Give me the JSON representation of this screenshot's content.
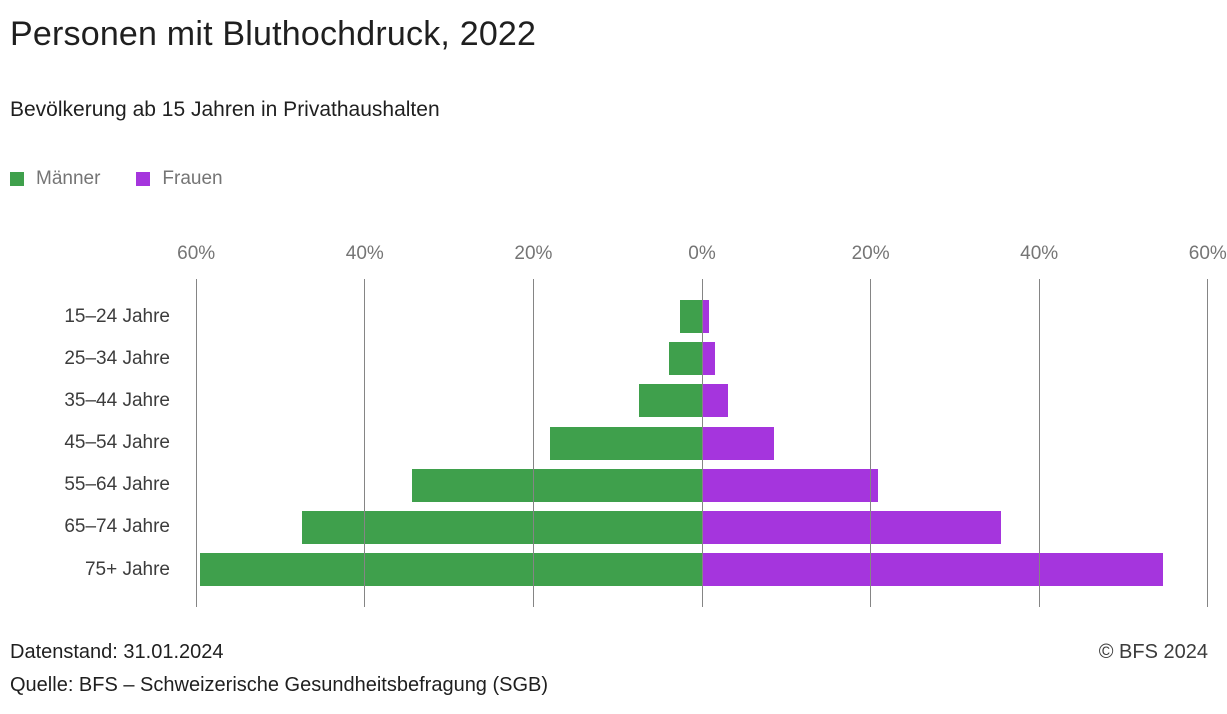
{
  "title": "Personen mit Bluthochdruck, 2022",
  "subtitle": "Bevölkerung ab 15 Jahren in Privathaushalten",
  "legend": {
    "items": [
      {
        "label": "Männer",
        "color": "#3fa04c"
      },
      {
        "label": "Frauen",
        "color": "#a535dd"
      }
    ]
  },
  "footer": {
    "datenstand": "Datenstand: 31.01.2024",
    "quelle": "Quelle: BFS – Schweizerische Gesundheitsbefragung (SGB)",
    "copyright": "© BFS 2024"
  },
  "colors": {
    "male": "#3fa04c",
    "female": "#a535dd",
    "gridline": "#858585",
    "tick_text": "#757575",
    "label_text": "#3c3c3c"
  },
  "chart_data": {
    "type": "bar",
    "variant": "population-pyramid-horizontal",
    "title": "Personen mit Bluthochdruck, 2022",
    "subtitle": "Bevölkerung ab 15 Jahren in Privathaushalten",
    "unit": "%",
    "categories": [
      "15–24 Jahre",
      "25–34 Jahre",
      "35–44 Jahre",
      "45–54 Jahre",
      "55–64 Jahre",
      "65–74 Jahre",
      "75+ Jahre"
    ],
    "series": [
      {
        "name": "Männer",
        "side": "left",
        "color": "#3fa04c",
        "values": [
          2.6,
          3.9,
          7.5,
          18.0,
          34.4,
          47.5,
          59.5
        ]
      },
      {
        "name": "Frauen",
        "side": "right",
        "color": "#a535dd",
        "values": [
          0.8,
          1.6,
          3.1,
          8.6,
          20.9,
          35.5,
          54.7
        ]
      }
    ],
    "x_tick_values": [
      -60,
      -40,
      -20,
      0,
      20,
      40,
      60
    ],
    "x_tick_labels": [
      "60%",
      "40%",
      "20%",
      "0%",
      "20%",
      "40%",
      "60%"
    ],
    "xlim": [
      -60,
      60
    ],
    "grid": true,
    "legend_position": "top-left"
  }
}
